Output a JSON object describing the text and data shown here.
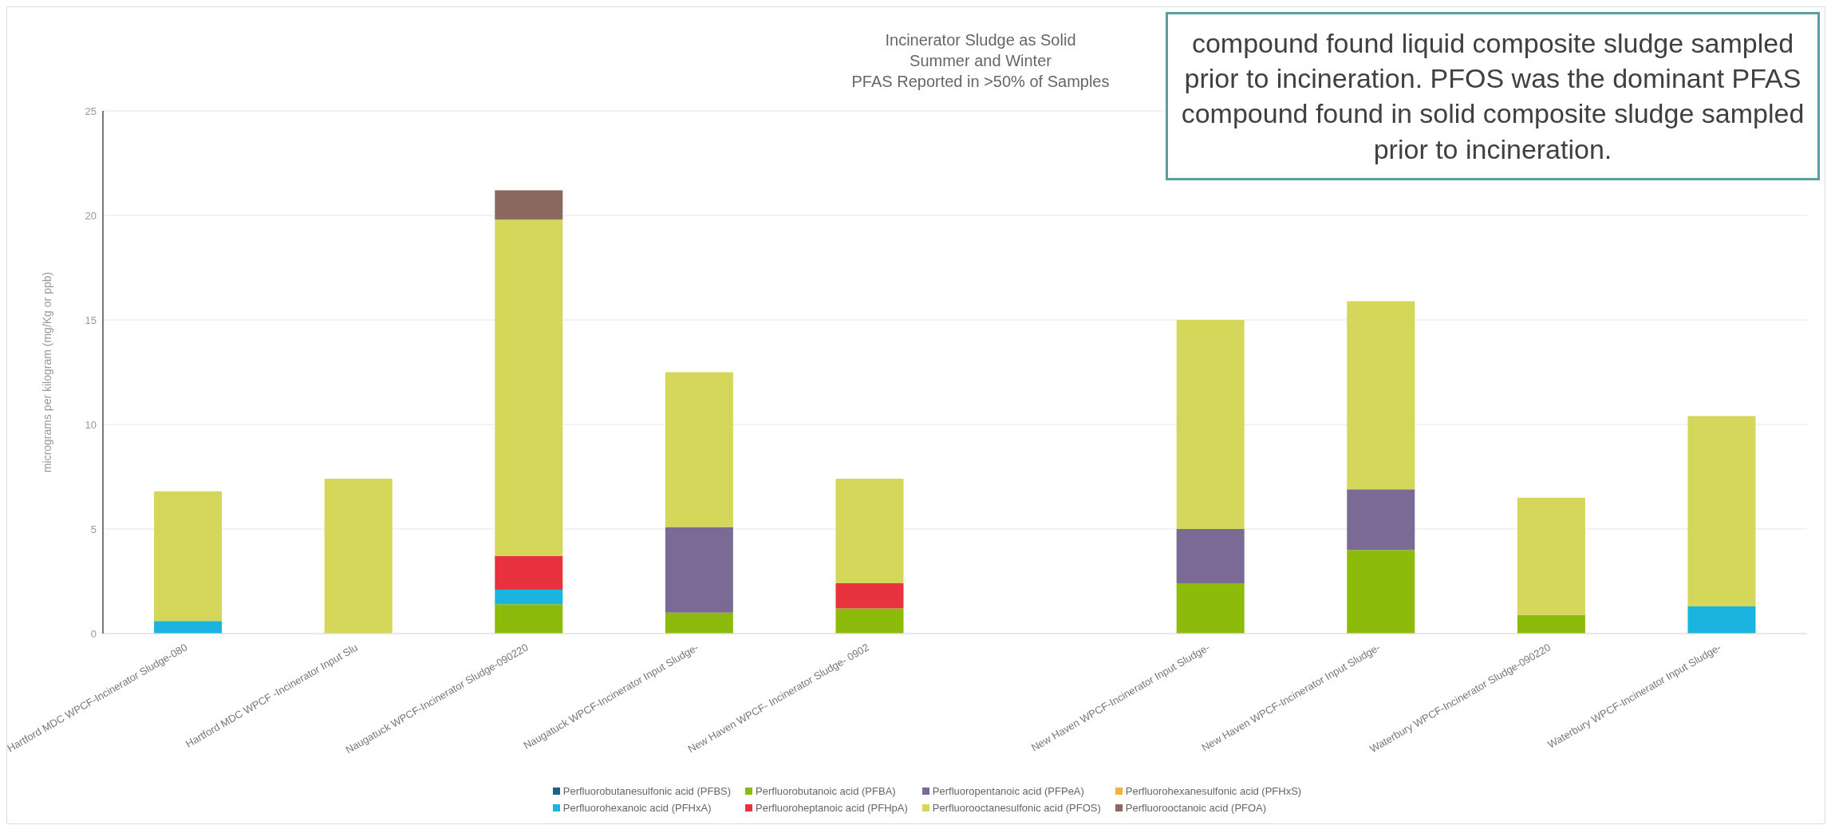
{
  "chart_data": {
    "type": "bar",
    "stacked": true,
    "title": "Incinerator Sludge as Solid\nSummer and Winter\nPFAS Reported in >50% of Samples",
    "ylabel": "micrograms per kilogram (mg/Kg or ppb)",
    "categories": [
      "Hartford MDC WPCF-Incinerator Sludge-080",
      "Hartford MDC WPCF -Incinerator Input Slu",
      "Naugatuck WPCF-Incinerator Sludge-090220",
      "Naugatuck WPCF-Incinerator Input Sludge-",
      "New Haven WPCF- Incinerator Sludge- 0902",
      null,
      "New Haven WPCF-Incinerator Input Sludge-",
      "New Haven WPCF-Incinerator Input Sludge-",
      "Waterbury WPCF-Incinerator Sludge-090220",
      "Waterbury WPCF-Incinerator Input Sludge-"
    ],
    "series": [
      {
        "name": "Perfluorobutanesulfonic acid (PFBS)",
        "color": "#1f5f8b",
        "values": [
          null,
          null,
          null,
          null,
          null,
          null,
          null,
          null,
          null,
          null
        ]
      },
      {
        "name": "Perfluorobutanoic acid (PFBA)",
        "color": "#8cbb0c",
        "values": [
          null,
          null,
          1.4,
          1.0,
          1.2,
          null,
          2.4,
          4.0,
          0.9,
          null
        ]
      },
      {
        "name": "Perfluoropentanoic acid (PFPeA)",
        "color": "#7b6a96",
        "values": [
          null,
          null,
          null,
          4.1,
          null,
          null,
          2.6,
          2.9,
          null,
          null
        ]
      },
      {
        "name": "Perfluorohexanesulfonic acid (PFHxS)",
        "color": "#f0b43c",
        "values": [
          null,
          null,
          null,
          null,
          null,
          null,
          null,
          null,
          null,
          null
        ]
      },
      {
        "name": "Perfluorohexanoic acid (PFHxA)",
        "color": "#1bb3e0",
        "values": [
          0.6,
          null,
          0.7,
          null,
          null,
          null,
          null,
          null,
          null,
          1.3
        ]
      },
      {
        "name": "Perfluoroheptanoic acid (PFHpA)",
        "color": "#e8333f",
        "values": [
          null,
          null,
          1.6,
          null,
          1.2,
          null,
          null,
          null,
          null,
          null
        ]
      },
      {
        "name": "Perfluorooctanesulfonic acid (PFOS)",
        "color": "#d4d75a",
        "values": [
          6.2,
          7.4,
          16.1,
          7.4,
          5.0,
          null,
          10.0,
          9.0,
          5.6,
          9.1
        ]
      },
      {
        "name": "Perfluorooctanoic acid (PFOA)",
        "color": "#8a6a60",
        "values": [
          null,
          null,
          1.4,
          null,
          null,
          null,
          null,
          null,
          null,
          null
        ]
      }
    ],
    "ylim": [
      0,
      25
    ],
    "yticks": [
      0,
      5,
      10,
      15,
      20,
      25
    ],
    "grid": "y",
    "legend": "bottom",
    "annotations": [
      "compound found liquid composite sludge sampled prior to incineration.  PFOS was the dominant PFAS compound found in solid composite sludge sampled prior to incineration."
    ]
  }
}
